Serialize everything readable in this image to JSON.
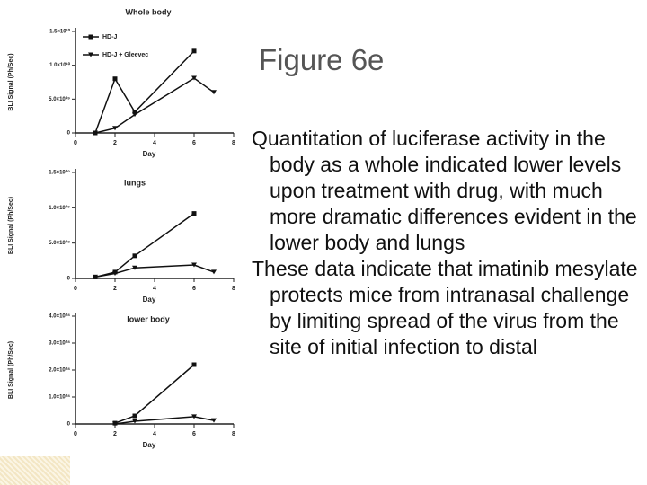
{
  "title": "Figure 6e",
  "bullets": [
    "Quantitation of luciferase activity in the body as a whole indicated lower levels upon treatment with drug, with much more dramatic differences evident in the lower body and lungs",
    "These data indicate that imatinib mesylate protects mice from intranasal challenge by limiting spread of the virus from the site of initial infection to distal"
  ],
  "chart_data": [
    {
      "type": "line",
      "title": "Whole body",
      "x_label": "Day",
      "y_label": "BLI Signal (Ph/Sec)",
      "x": [
        1,
        2,
        3,
        6,
        7
      ],
      "series": [
        {
          "name": "HD-J",
          "color": "#111111",
          "values": [
            0,
            8000000000,
            3100000000,
            12100000000,
            null
          ]
        },
        {
          "name": "HD-J + Gleevec",
          "color": "#111111",
          "values": [
            0,
            700000000,
            2700000000,
            8100000000,
            6000000000
          ]
        }
      ],
      "xlim": [
        0,
        8
      ],
      "xticks": [
        0,
        2,
        4,
        6,
        8
      ],
      "ylim": [
        0,
        15000000000
      ],
      "yticks": [
        0,
        {
          "value": 5000000000,
          "label": "5.0×10⁰⁹"
        },
        {
          "value": 10000000000,
          "label": "1.0×10¹⁰"
        },
        {
          "value": 15000000000,
          "label": "1.5×10¹⁰"
        }
      ],
      "legend": "upper left"
    },
    {
      "type": "line",
      "title": "lungs",
      "x_label": "Day",
      "y_label": "BLI Signal (Ph/Sec)",
      "x": [
        1,
        2,
        3,
        6,
        7
      ],
      "series": [
        {
          "color": "#111111",
          "values": [
            20000000,
            90000000,
            320000000,
            920000000,
            null
          ]
        },
        {
          "color": "#111111",
          "values": [
            20000000,
            70000000,
            150000000,
            190000000,
            90000000
          ]
        }
      ],
      "xlim": [
        0,
        8
      ],
      "xticks": [
        0,
        2,
        4,
        6,
        8
      ],
      "ylim": [
        0,
        1500000000
      ],
      "yticks": [
        0,
        {
          "value": 500000000,
          "label": "5.0×10⁰⁸"
        },
        {
          "value": 1000000000,
          "label": "1.0×10⁰⁹"
        },
        {
          "value": 1500000000,
          "label": "1.5×10⁰⁹"
        }
      ]
    },
    {
      "type": "line",
      "title": "lower body",
      "x_label": "Day",
      "y_label": "BLI Signal (Ph/Sec)",
      "x": [
        2,
        3,
        6,
        7
      ],
      "series": [
        {
          "color": "#111111",
          "values": [
            3000000,
            30000000,
            220000000,
            null
          ]
        },
        {
          "color": "#111111",
          "values": [
            0,
            10000000,
            27000000,
            13000000
          ]
        }
      ],
      "xlim": [
        0,
        8
      ],
      "xticks": [
        0,
        2,
        4,
        6,
        8
      ],
      "ylim": [
        0,
        400000000
      ],
      "yticks": [
        0,
        {
          "value": 100000000,
          "label": "1.0×10⁰⁸"
        },
        {
          "value": 200000000,
          "label": "2.0×10⁰⁸"
        },
        {
          "value": 300000000,
          "label": "3.0×10⁰⁸"
        },
        {
          "value": 400000000,
          "label": "4.0×10⁰⁸"
        }
      ]
    }
  ]
}
